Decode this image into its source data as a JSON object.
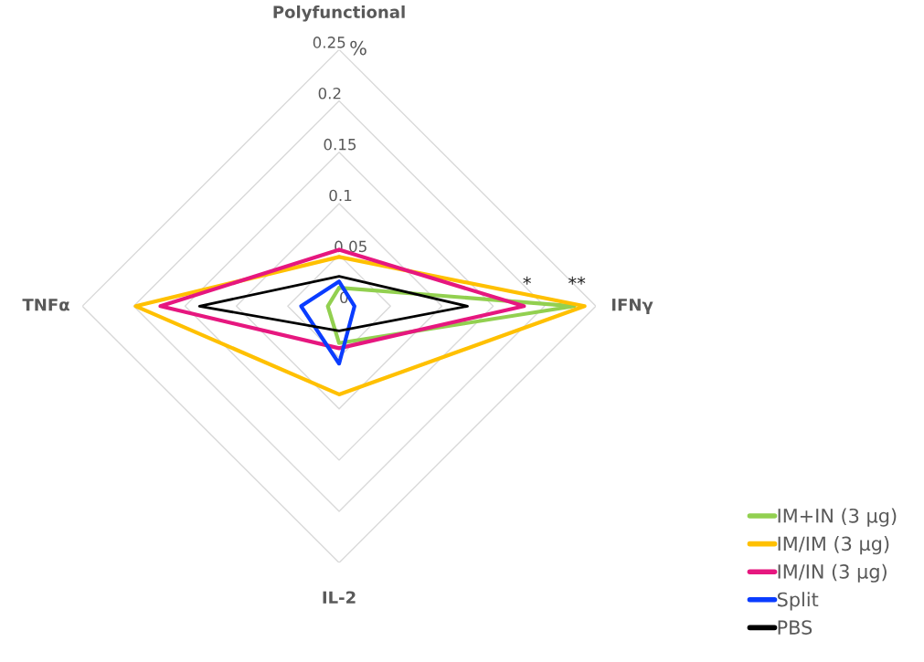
{
  "chart_data": {
    "type": "radar",
    "categories": [
      "Polyfunctional",
      "IFNγ",
      "IL-2",
      "TNFα"
    ],
    "ylabel": "%",
    "ylim": [
      0,
      0.25
    ],
    "yticks": [
      0,
      0.05,
      0.1,
      0.15,
      0.2,
      0.25
    ],
    "grid": true,
    "legend": "bottom right",
    "series": [
      {
        "name": "IM+IN (3 µg)",
        "color": "#92d050",
        "values": [
          0.018,
          0.229,
          0.036,
          0.011
        ]
      },
      {
        "name": "IM/IM (3 µg)",
        "color": "#ffc000",
        "values": [
          0.048,
          0.239,
          0.086,
          0.198
        ]
      },
      {
        "name": "IM/IN (3 µg)",
        "color": "#e6177f",
        "values": [
          0.055,
          0.18,
          0.041,
          0.174
        ]
      },
      {
        "name": "Split",
        "color": "#0a3cff",
        "values": [
          0.024,
          0.015,
          0.056,
          0.037
        ]
      },
      {
        "name": "PBS",
        "color": "#000000",
        "values": [
          0.029,
          0.125,
          0.024,
          0.136
        ]
      }
    ],
    "annotations": [
      "*",
      "**"
    ]
  }
}
